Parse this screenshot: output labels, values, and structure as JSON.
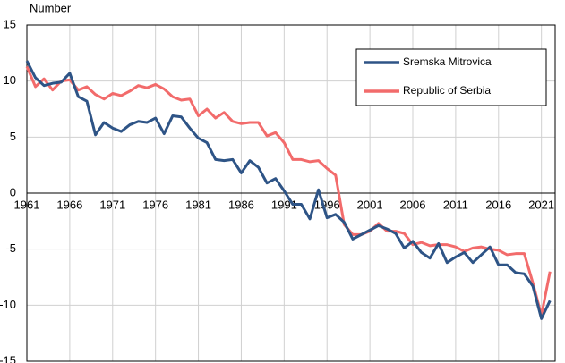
{
  "chart_data": {
    "type": "line",
    "y_label": "Number",
    "x": [
      1961,
      1962,
      1963,
      1964,
      1965,
      1966,
      1967,
      1968,
      1969,
      1970,
      1971,
      1972,
      1973,
      1974,
      1975,
      1976,
      1977,
      1978,
      1979,
      1980,
      1981,
      1982,
      1983,
      1984,
      1985,
      1986,
      1987,
      1988,
      1989,
      1990,
      1991,
      1992,
      1993,
      1994,
      1995,
      1996,
      1997,
      1998,
      1999,
      2000,
      2001,
      2002,
      2003,
      2004,
      2005,
      2006,
      2007,
      2008,
      2009,
      2010,
      2011,
      2012,
      2013,
      2014,
      2015,
      2016,
      2017,
      2018,
      2019,
      2020,
      2021,
      2022
    ],
    "series": [
      {
        "name": "Sremska Mitrovica",
        "color": "#2e5486",
        "values": [
          11.8,
          10.3,
          9.6,
          9.8,
          9.9,
          10.7,
          8.6,
          8.2,
          5.2,
          6.3,
          5.8,
          5.5,
          6.1,
          6.4,
          6.3,
          6.7,
          5.3,
          6.9,
          6.8,
          5.8,
          4.9,
          4.5,
          3.0,
          2.9,
          3.0,
          1.8,
          2.9,
          2.3,
          0.9,
          1.3,
          0.2,
          -1.0,
          -1.0,
          -2.3,
          0.3,
          -2.2,
          -1.9,
          -2.6,
          -4.1,
          -3.7,
          -3.3,
          -2.9,
          -3.2,
          -3.6,
          -4.9,
          -4.3,
          -5.3,
          -5.8,
          -4.5,
          -6.2,
          -5.7,
          -5.3,
          -6.2,
          -5.5,
          -4.8,
          -6.4,
          -6.4,
          -7.1,
          -7.2,
          -8.3,
          -11.2,
          -9.6
        ]
      },
      {
        "name": "Republic of Serbia",
        "color": "#f26b6b",
        "values": [
          11.3,
          9.5,
          10.2,
          9.2,
          10.0,
          10.1,
          9.2,
          9.5,
          8.8,
          8.4,
          8.9,
          8.7,
          9.1,
          9.6,
          9.4,
          9.7,
          9.3,
          8.6,
          8.3,
          8.4,
          6.9,
          7.5,
          6.7,
          7.2,
          6.4,
          6.2,
          6.3,
          6.3,
          5.1,
          5.4,
          4.5,
          3.0,
          3.0,
          2.8,
          2.9,
          2.2,
          1.6,
          -2.8,
          -3.7,
          -3.7,
          -3.4,
          -2.7,
          -3.4,
          -3.4,
          -3.6,
          -4.6,
          -4.4,
          -4.7,
          -4.6,
          -4.6,
          -4.8,
          -5.2,
          -4.9,
          -4.8,
          -5.0,
          -5.1,
          -5.5,
          -5.4,
          -5.4,
          -8.0,
          -10.9,
          -7.0
        ]
      }
    ],
    "xlim": [
      1961,
      2022.6
    ],
    "xticks": [
      1961,
      1966,
      1971,
      1976,
      1981,
      1986,
      1991,
      1996,
      2001,
      2006,
      2011,
      2016,
      2021
    ],
    "ylim": [
      -15,
      15
    ],
    "yticks": [
      -15,
      -10,
      -5,
      0,
      5,
      10,
      15
    ],
    "grid": true
  }
}
